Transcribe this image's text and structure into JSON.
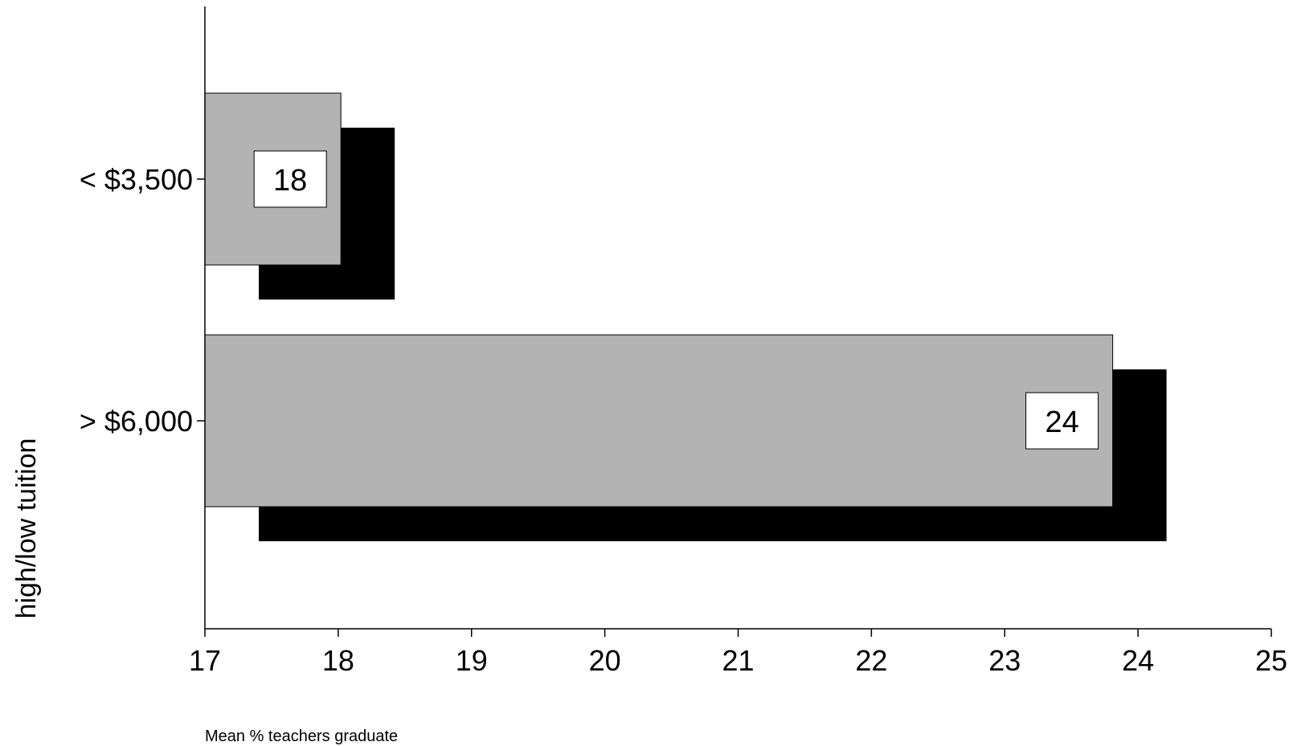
{
  "chart_data": {
    "type": "bar",
    "orientation": "horizontal",
    "categories": [
      "< $3,500",
      "> $6,000"
    ],
    "values": [
      18.02,
      23.81
    ],
    "data_labels": [
      "18",
      "24"
    ],
    "xlabel": "Mean % teachers graduate",
    "ylabel": "high/low tuition",
    "xlim": [
      17,
      25
    ],
    "xticks": [
      "17",
      "18",
      "19",
      "20",
      "21",
      "22",
      "23",
      "24",
      "25"
    ],
    "grid": false,
    "legend": "none",
    "colors": {
      "bar": "#b3b3b3",
      "shadow": "#000000",
      "label_box": "#ffffff"
    }
  }
}
